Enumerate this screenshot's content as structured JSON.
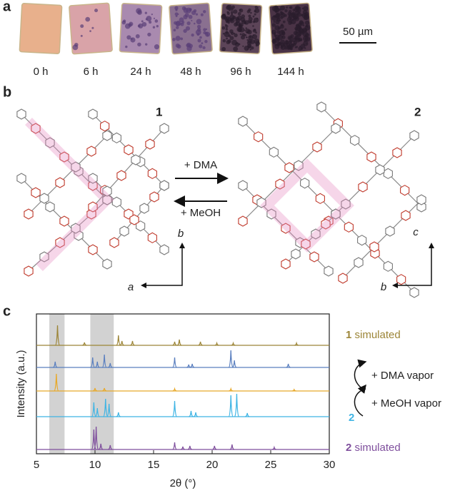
{
  "panel_a": {
    "label": "a",
    "times": [
      "0 h",
      "6 h",
      "24 h",
      "48 h",
      "96 h",
      "144 h"
    ],
    "scale_bar": "50 µm"
  },
  "panel_b": {
    "label": "b",
    "structure_1": "1",
    "structure_2": "2",
    "forward": "+ DMA",
    "reverse": "+ MeOH",
    "axes_1": [
      "b",
      "a"
    ],
    "axes_2": [
      "c",
      "b"
    ]
  },
  "chart_data": {
    "type": "line",
    "panel_label": "c",
    "xlabel": "2θ (°)",
    "ylabel": "Intensity (a.u.)",
    "xlim": [
      5,
      30
    ],
    "xticks": [
      5,
      10,
      15,
      20,
      25,
      30
    ],
    "shaded_ranges": [
      [
        6.1,
        7.4
      ],
      [
        9.6,
        11.6
      ]
    ],
    "annotations": [
      "+ DMA vapor",
      "+ MeOH vapor"
    ],
    "series": [
      {
        "compound": "1",
        "name": "simulated",
        "color": "#9c8537",
        "x": [
          6.8,
          9.1,
          12.0,
          12.3,
          13.2,
          16.8,
          17.2,
          19.0,
          20.4,
          21.8,
          27.2
        ],
        "values": [
          28,
          4,
          14,
          6,
          6,
          5,
          8,
          5,
          3,
          3,
          3
        ]
      },
      {
        "color": "#5a7fbf",
        "x": [
          6.6,
          9.8,
          10.2,
          10.8,
          11.3,
          16.8,
          18.0,
          18.3,
          21.6,
          21.9,
          26.5
        ],
        "values": [
          8,
          14,
          8,
          18,
          6,
          14,
          4,
          5,
          24,
          10,
          5
        ]
      },
      {
        "color": "#e8a92a",
        "x": [
          6.7,
          10.0,
          10.8,
          16.8,
          21.6,
          27.0
        ],
        "values": [
          24,
          4,
          4,
          3,
          3,
          2
        ]
      },
      {
        "compound": "2",
        "color": "#3fb4e4",
        "x": [
          9.9,
          10.2,
          10.9,
          11.2,
          12.0,
          16.8,
          18.2,
          18.6,
          21.6,
          22.1,
          23.0
        ],
        "values": [
          20,
          12,
          25,
          18,
          6,
          22,
          8,
          6,
          30,
          32,
          5
        ]
      },
      {
        "compound": "2",
        "name": "simulated",
        "color": "#7f4f9d",
        "x": [
          9.9,
          10.1,
          10.5,
          11.3,
          16.8,
          17.5,
          18.1,
          20.2,
          21.7,
          25.3
        ],
        "values": [
          28,
          32,
          8,
          6,
          10,
          4,
          5,
          5,
          7,
          3
        ]
      }
    ]
  }
}
